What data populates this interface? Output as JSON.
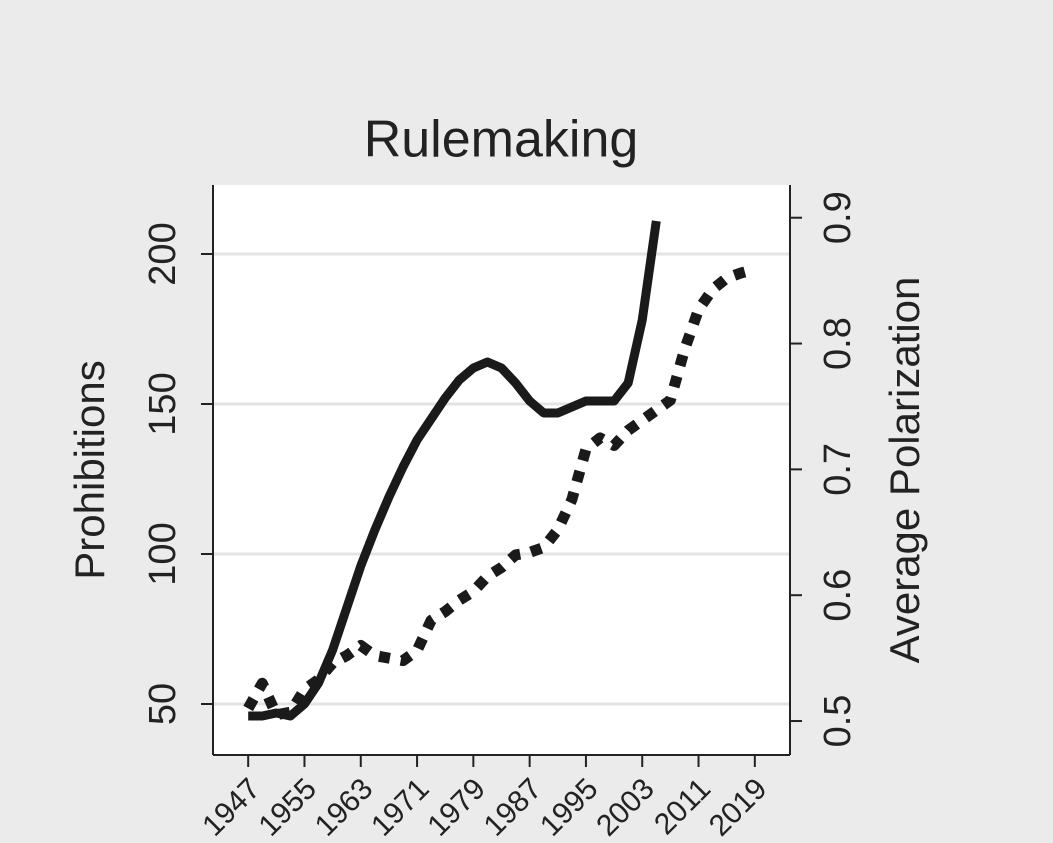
{
  "chart_data": {
    "type": "line",
    "title": "Rulemaking",
    "y_label": "Prohibitions",
    "y2_label": "Average Polarization",
    "x": [
      1947,
      1949,
      1951,
      1953,
      1955,
      1957,
      1959,
      1961,
      1963,
      1965,
      1967,
      1969,
      1971,
      1973,
      1975,
      1977,
      1979,
      1981,
      1983,
      1985,
      1987,
      1989,
      1991,
      1993,
      1995,
      1997,
      1999,
      2001,
      2003,
      2005,
      2007,
      2009,
      2011,
      2013,
      2015,
      2017,
      2019
    ],
    "xlim": [
      1942,
      2024
    ],
    "xticks": [
      1947,
      1955,
      1963,
      1971,
      1979,
      1987,
      1995,
      2003,
      2011,
      2019
    ],
    "ylim": [
      33,
      223
    ],
    "yticks": [
      50,
      100,
      150,
      200
    ],
    "y2lim": [
      0.473,
      0.926
    ],
    "y2ticks": [
      0.5,
      0.6,
      0.7,
      0.8,
      0.9
    ],
    "grid": true,
    "series": [
      {
        "color": "#1a1a1a",
        "style": "solid",
        "values": [
          46,
          46,
          47,
          46,
          50,
          57,
          68,
          82,
          96,
          108,
          119,
          129,
          138,
          145,
          152,
          158,
          162,
          164,
          162,
          157,
          151,
          147,
          147,
          149,
          151,
          151,
          151,
          157,
          178,
          211,
          null,
          null,
          null,
          null,
          null,
          null,
          null
        ]
      },
      {
        "color": "#1a1a1a",
        "style": "dotted",
        "axis": "y2",
        "values": [
          0.51,
          0.53,
          0.505,
          0.507,
          0.525,
          0.533,
          0.546,
          0.552,
          0.56,
          0.552,
          0.55,
          0.548,
          0.556,
          0.58,
          0.587,
          0.596,
          0.603,
          0.615,
          0.622,
          0.632,
          0.634,
          0.638,
          0.652,
          0.676,
          0.716,
          0.725,
          0.719,
          0.731,
          0.739,
          0.747,
          0.755,
          0.795,
          0.827,
          0.843,
          0.852,
          0.856,
          0.859
        ]
      }
    ]
  }
}
